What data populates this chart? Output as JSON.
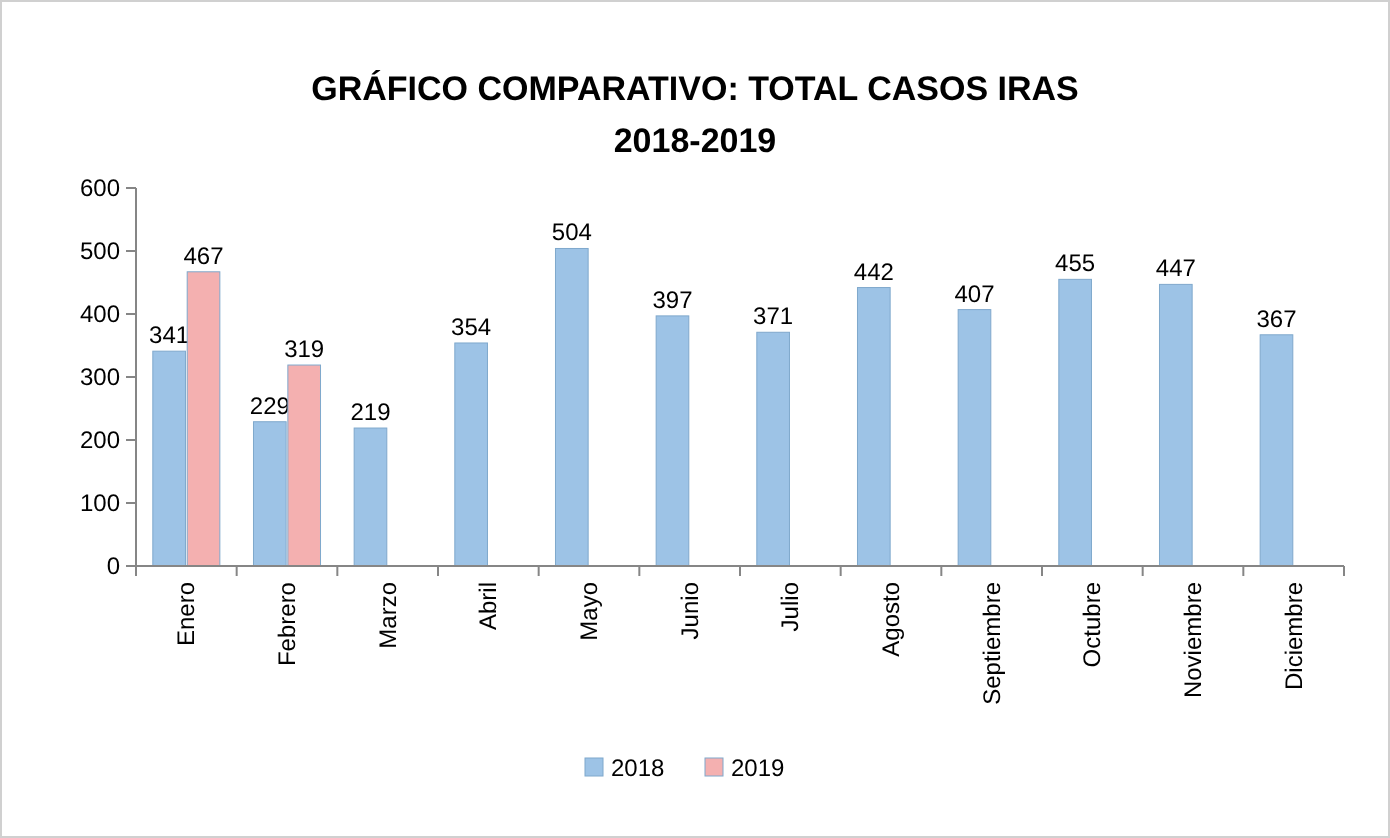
{
  "chart_data": {
    "type": "bar",
    "title": "GRÁFICO COMPARATIVO: TOTAL CASOS IRAS",
    "subtitle": "2018-2019",
    "categories": [
      "Enero",
      "Febrero",
      "Marzo",
      "Abril",
      "Mayo",
      "Junio",
      "Julio",
      "Agosto",
      "Septiembre",
      "Octubre",
      "Noviembre",
      "Diciembre"
    ],
    "series": [
      {
        "name": "2018",
        "color": "#9dc3e6",
        "values": [
          341,
          229,
          219,
          354,
          504,
          397,
          371,
          442,
          407,
          455,
          447,
          367
        ]
      },
      {
        "name": "2019",
        "color": "#f4b0b0",
        "values": [
          467,
          319,
          null,
          null,
          null,
          null,
          null,
          null,
          null,
          null,
          null,
          null
        ]
      }
    ],
    "ylim": [
      0,
      600
    ],
    "yticks": [
      0,
      100,
      200,
      300,
      400,
      500,
      600
    ],
    "data_labels": true,
    "legend": "bottom",
    "grid": false
  }
}
